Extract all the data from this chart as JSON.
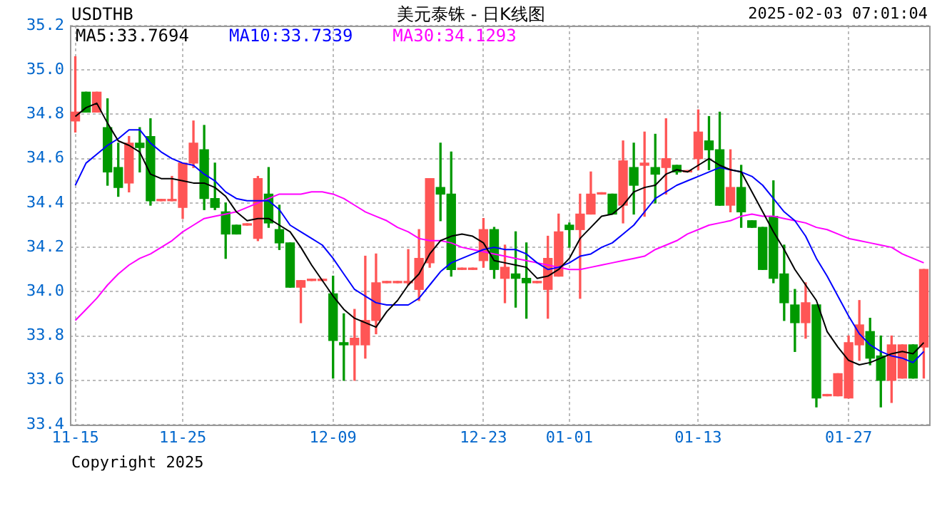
{
  "chart_data": {
    "type": "candlestick",
    "title": "美元泰铢 - 日K线图",
    "subtitle": "USDTHB",
    "annotations": [
      "2025-02-03 07:01:04",
      "Copyright 2025"
    ],
    "categories": [
      "11-15",
      null,
      null,
      null,
      null,
      null,
      null,
      null,
      null,
      null,
      "11-25",
      null,
      null,
      null,
      null,
      null,
      null,
      null,
      null,
      null,
      null,
      null,
      null,
      null,
      "12-09",
      null,
      null,
      null,
      null,
      null,
      null,
      null,
      null,
      null,
      null,
      null,
      null,
      null,
      "12-23",
      null,
      null,
      null,
      null,
      null,
      null,
      null,
      "01-01",
      null,
      null,
      null,
      null,
      null,
      null,
      null,
      null,
      null,
      null,
      null,
      "01-13",
      null,
      null,
      null,
      null,
      null,
      null,
      null,
      null,
      null,
      null,
      null,
      null,
      null,
      "01-27",
      null,
      null,
      null,
      null,
      null,
      null,
      null
    ],
    "ohlc": [
      [
        34.77,
        35.06,
        34.72,
        34.81
      ],
      [
        34.9,
        34.9,
        34.81,
        34.81
      ],
      [
        34.81,
        34.9,
        34.81,
        34.9
      ],
      [
        34.74,
        34.87,
        34.48,
        34.54
      ],
      [
        34.56,
        34.67,
        34.43,
        34.47
      ],
      [
        34.49,
        34.7,
        34.45,
        34.67
      ],
      [
        34.67,
        34.74,
        34.54,
        34.65
      ],
      [
        34.7,
        34.78,
        34.39,
        34.41
      ],
      [
        34.41,
        34.41,
        34.41,
        34.41
      ],
      [
        34.41,
        34.52,
        34.41,
        34.41
      ],
      [
        34.38,
        34.58,
        34.33,
        34.58
      ],
      [
        34.58,
        34.77,
        34.56,
        34.67
      ],
      [
        34.64,
        34.75,
        34.37,
        34.42
      ],
      [
        34.42,
        34.58,
        34.37,
        34.38
      ],
      [
        34.36,
        34.4,
        34.15,
        34.26
      ],
      [
        34.3,
        34.3,
        34.26,
        34.26
      ],
      [
        34.3,
        34.3,
        34.3,
        34.3
      ],
      [
        34.24,
        34.52,
        34.23,
        34.51
      ],
      [
        34.44,
        34.56,
        34.29,
        34.31
      ],
      [
        34.28,
        34.39,
        34.19,
        34.22
      ],
      [
        34.22,
        34.22,
        34.02,
        34.02
      ],
      [
        34.02,
        34.05,
        33.86,
        34.05
      ],
      [
        34.05,
        34.05,
        34.05,
        34.05
      ],
      [
        34.05,
        34.05,
        34.05,
        34.05
      ],
      [
        33.99,
        34.07,
        33.61,
        33.78
      ],
      [
        33.77,
        33.9,
        33.6,
        33.76
      ],
      [
        33.76,
        33.92,
        33.6,
        33.79
      ],
      [
        33.76,
        34.16,
        33.7,
        33.87
      ],
      [
        33.87,
        34.17,
        33.81,
        34.04
      ],
      [
        34.04,
        34.04,
        34.04,
        34.04
      ],
      [
        34.04,
        34.04,
        34.04,
        34.04
      ],
      [
        34.04,
        34.19,
        34.03,
        34.04
      ],
      [
        34.01,
        34.28,
        33.96,
        34.15
      ],
      [
        34.13,
        34.51,
        34.11,
        34.51
      ],
      [
        34.47,
        34.67,
        34.32,
        34.44
      ],
      [
        34.44,
        34.63,
        34.07,
        34.1
      ],
      [
        34.1,
        34.1,
        34.1,
        34.1
      ],
      [
        34.1,
        34.1,
        34.1,
        34.1
      ],
      [
        34.14,
        34.33,
        34.11,
        34.28
      ],
      [
        34.28,
        34.29,
        34.06,
        34.1
      ],
      [
        34.06,
        34.21,
        33.95,
        34.11
      ],
      [
        34.08,
        34.27,
        33.93,
        34.06
      ],
      [
        34.06,
        34.22,
        33.88,
        34.04
      ],
      [
        34.04,
        34.04,
        34.04,
        34.04
      ],
      [
        34.01,
        34.25,
        33.88,
        34.15
      ],
      [
        34.07,
        34.35,
        34.07,
        34.27
      ],
      [
        34.3,
        34.31,
        34.2,
        34.28
      ],
      [
        34.28,
        34.44,
        33.97,
        34.35
      ],
      [
        34.35,
        34.54,
        34.35,
        34.44
      ],
      [
        34.44,
        34.44,
        34.44,
        34.44
      ],
      [
        34.44,
        34.44,
        34.35,
        34.35
      ],
      [
        34.39,
        34.68,
        34.31,
        34.59
      ],
      [
        34.56,
        34.67,
        34.35,
        34.48
      ],
      [
        34.57,
        34.72,
        34.34,
        34.58
      ],
      [
        34.56,
        34.71,
        34.4,
        34.53
      ],
      [
        34.56,
        34.78,
        34.44,
        34.6
      ],
      [
        34.57,
        34.57,
        34.53,
        34.54
      ],
      [
        34.54,
        34.54,
        34.54,
        34.54
      ],
      [
        34.6,
        34.82,
        34.55,
        34.72
      ],
      [
        34.68,
        34.79,
        34.55,
        34.64
      ],
      [
        34.64,
        34.81,
        34.39,
        34.39
      ],
      [
        34.39,
        34.64,
        34.36,
        34.47
      ],
      [
        34.47,
        34.57,
        34.29,
        34.36
      ],
      [
        34.32,
        34.32,
        34.29,
        34.29
      ],
      [
        34.29,
        34.29,
        34.1,
        34.1
      ],
      [
        34.34,
        34.5,
        34.04,
        34.06
      ],
      [
        34.08,
        34.21,
        33.87,
        33.95
      ],
      [
        33.94,
        34.01,
        33.73,
        33.86
      ],
      [
        33.86,
        34.04,
        33.79,
        33.95
      ],
      [
        33.94,
        33.94,
        33.48,
        33.52
      ],
      [
        33.53,
        33.53,
        33.53,
        33.53
      ],
      [
        33.53,
        33.63,
        33.53,
        33.63
      ],
      [
        33.52,
        33.8,
        33.52,
        33.77
      ],
      [
        33.76,
        33.96,
        33.69,
        33.85
      ],
      [
        33.82,
        33.88,
        33.67,
        33.7
      ],
      [
        33.71,
        33.8,
        33.48,
        33.6
      ],
      [
        33.6,
        33.8,
        33.5,
        33.76
      ],
      [
        33.61,
        33.76,
        33.61,
        33.76
      ],
      [
        33.76,
        33.76,
        33.61,
        33.61
      ],
      [
        33.75,
        34.1,
        33.61,
        34.1
      ]
    ],
    "colors": [
      "#ff5555",
      "#009900",
      "#ff5555",
      "#009900",
      "#009900",
      "#ff5555",
      "#009900",
      "#009900",
      "#ff5555",
      "#ff5555",
      "#ff5555",
      "#ff5555",
      "#009900",
      "#009900",
      "#009900",
      "#009900",
      "#ff5555",
      "#ff5555",
      "#009900",
      "#009900",
      "#009900",
      "#ff5555",
      "#ff5555",
      "#ff5555",
      "#009900",
      "#009900",
      "#ff5555",
      "#ff5555",
      "#ff5555",
      "#ff5555",
      "#ff5555",
      "#ff5555",
      "#ff5555",
      "#ff5555",
      "#009900",
      "#009900",
      "#ff5555",
      "#ff5555",
      "#ff5555",
      "#009900",
      "#ff5555",
      "#009900",
      "#009900",
      "#ff5555",
      "#ff5555",
      "#ff5555",
      "#009900",
      "#ff5555",
      "#ff5555",
      "#ff5555",
      "#009900",
      "#ff5555",
      "#009900",
      "#ff5555",
      "#009900",
      "#ff5555",
      "#009900",
      "#ff5555",
      "#ff5555",
      "#009900",
      "#009900",
      "#ff5555",
      "#009900",
      "#009900",
      "#009900",
      "#009900",
      "#009900",
      "#009900",
      "#ff5555",
      "#009900",
      "#ff5555",
      "#ff5555",
      "#ff5555",
      "#ff5555",
      "#009900",
      "#009900",
      "#ff5555",
      "#ff5555",
      "#009900",
      "#ff5555"
    ],
    "series": [
      {
        "type": "line",
        "name": "MA5:33.7694",
        "color": "#000000",
        "values": [
          34.79,
          34.83,
          34.85,
          34.76,
          34.68,
          34.66,
          34.63,
          34.53,
          34.51,
          34.51,
          34.5,
          34.49,
          34.49,
          34.47,
          34.43,
          34.36,
          34.32,
          34.33,
          34.33,
          34.3,
          34.27,
          34.2,
          34.12,
          34.05,
          33.98,
          33.92,
          33.88,
          33.86,
          33.84,
          33.91,
          33.96,
          34.03,
          34.08,
          34.17,
          34.23,
          34.25,
          34.26,
          34.25,
          34.22,
          34.14,
          34.13,
          34.12,
          34.11,
          34.06,
          34.07,
          34.1,
          34.15,
          34.24,
          34.29,
          34.34,
          34.35,
          34.39,
          34.45,
          34.47,
          34.48,
          34.53,
          34.55,
          34.54,
          34.57,
          34.6,
          34.57,
          34.55,
          34.54,
          34.45,
          34.36,
          34.27,
          34.19,
          34.1,
          34.03,
          33.96,
          33.82,
          33.75,
          33.69,
          33.67,
          33.68,
          33.7,
          33.72,
          33.73,
          33.72,
          33.77
        ]
      },
      {
        "type": "line",
        "name": "MA10:33.7339",
        "color": "#0000ff",
        "values": [
          34.48,
          34.58,
          34.62,
          34.66,
          34.69,
          34.73,
          34.73,
          34.67,
          34.63,
          34.6,
          34.58,
          34.57,
          34.53,
          34.5,
          34.45,
          34.42,
          34.41,
          34.41,
          34.41,
          34.37,
          34.3,
          34.27,
          34.24,
          34.21,
          34.15,
          34.08,
          34.01,
          33.98,
          33.95,
          33.94,
          33.94,
          33.94,
          33.97,
          34.03,
          34.09,
          34.13,
          34.15,
          34.17,
          34.19,
          34.2,
          34.19,
          34.19,
          34.17,
          34.13,
          34.1,
          34.11,
          34.13,
          34.16,
          34.17,
          34.2,
          34.22,
          34.26,
          34.3,
          34.36,
          34.42,
          34.45,
          34.48,
          34.5,
          34.52,
          34.54,
          34.56,
          34.55,
          34.54,
          34.52,
          34.48,
          34.42,
          34.36,
          34.32,
          34.25,
          34.15,
          34.07,
          33.98,
          33.89,
          33.81,
          33.76,
          33.73,
          33.71,
          33.7,
          33.68,
          33.73
        ]
      },
      {
        "type": "line",
        "name": "MA30:34.1293",
        "color": "#ff00ff",
        "values": [
          33.87,
          33.92,
          33.97,
          34.03,
          34.08,
          34.12,
          34.15,
          34.17,
          34.2,
          34.23,
          34.27,
          34.3,
          34.33,
          34.34,
          34.35,
          34.36,
          34.38,
          34.4,
          34.42,
          34.44,
          34.44,
          34.44,
          34.45,
          34.45,
          34.44,
          34.42,
          34.39,
          34.36,
          34.34,
          34.32,
          34.29,
          34.27,
          34.24,
          34.23,
          34.23,
          34.22,
          34.2,
          34.19,
          34.18,
          34.17,
          34.16,
          34.15,
          34.14,
          34.13,
          34.12,
          34.11,
          34.1,
          34.1,
          34.11,
          34.12,
          34.13,
          34.14,
          34.15,
          34.16,
          34.19,
          34.21,
          34.23,
          34.26,
          34.28,
          34.3,
          34.31,
          34.32,
          34.34,
          34.35,
          34.34,
          34.34,
          34.33,
          34.32,
          34.31,
          34.29,
          34.28,
          34.26,
          34.24,
          34.23,
          34.22,
          34.21,
          34.2,
          34.17,
          34.15,
          34.13
        ]
      }
    ],
    "ylim": [
      33.4,
      35.2
    ],
    "yticks": [
      33.4,
      33.6,
      33.8,
      {
        "value": 34,
        "label": "34.0"
      },
      34.2,
      34.4,
      34.6,
      34.8,
      {
        "value": 35,
        "label": "35.0"
      },
      35.2
    ],
    "grid": true,
    "legend": "top left"
  }
}
